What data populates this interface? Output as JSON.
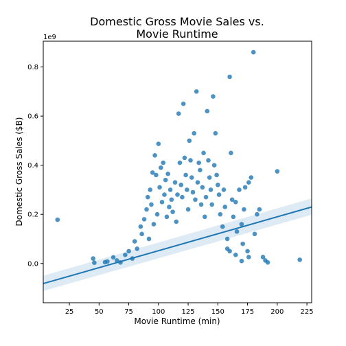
{
  "chart_data": {
    "type": "scatter",
    "title_lines": [
      "Domestic Gross Movie Sales vs.",
      "Movie Runtime"
    ],
    "xlabel": "Movie Runtime (min)",
    "ylabel": "Domestic Gross Sales ($B)",
    "y_offset_label": "1e9",
    "xlim": [
      3,
      229
    ],
    "ylim": [
      -0.16,
      0.905
    ],
    "xticks": [
      25,
      50,
      75,
      100,
      125,
      150,
      175,
      200,
      225
    ],
    "xtick_labels": [
      "25",
      "50",
      "75",
      "100",
      "125",
      "150",
      "175",
      "200",
      "225"
    ],
    "yticks": [
      0.0,
      0.2,
      0.4,
      0.6,
      0.8
    ],
    "ytick_labels": [
      "0.0",
      "0.2",
      "0.4",
      "0.6",
      "0.8"
    ],
    "grid": false,
    "point_color": "#1f77b4",
    "regression": {
      "x": [
        3,
        229
      ],
      "y": [
        -0.082,
        0.23
      ],
      "ci_lower": [
        -0.112,
        0.198
      ],
      "ci_upper": [
        -0.05,
        0.265
      ]
    },
    "points": [
      [
        15,
        0.178
      ],
      [
        45,
        0.02
      ],
      [
        46,
        0.003
      ],
      [
        55,
        0.005
      ],
      [
        57,
        0.008
      ],
      [
        62,
        0.025
      ],
      [
        65,
        0.012
      ],
      [
        68,
        0.004
      ],
      [
        72,
        0.035
      ],
      [
        75,
        0.05
      ],
      [
        78,
        0.02
      ],
      [
        80,
        0.09
      ],
      [
        82,
        0.06
      ],
      [
        85,
        0.15
      ],
      [
        86,
        0.12
      ],
      [
        88,
        0.18
      ],
      [
        90,
        0.22
      ],
      [
        91,
        0.27
      ],
      [
        92,
        0.1
      ],
      [
        93,
        0.3
      ],
      [
        94,
        0.24
      ],
      [
        95,
        0.37
      ],
      [
        96,
        0.16
      ],
      [
        97,
        0.44
      ],
      [
        98,
        0.36
      ],
      [
        99,
        0.2
      ],
      [
        100,
        0.487
      ],
      [
        101,
        0.31
      ],
      [
        102,
        0.39
      ],
      [
        103,
        0.25
      ],
      [
        104,
        0.41
      ],
      [
        105,
        0.28
      ],
      [
        106,
        0.34
      ],
      [
        107,
        0.19
      ],
      [
        108,
        0.365
      ],
      [
        109,
        0.23
      ],
      [
        110,
        0.3
      ],
      [
        111,
        0.26
      ],
      [
        112,
        0.21
      ],
      [
        114,
        0.33
      ],
      [
        115,
        0.17
      ],
      [
        116,
        0.28
      ],
      [
        117,
        0.61
      ],
      [
        118,
        0.41
      ],
      [
        119,
        0.32
      ],
      [
        120,
        0.27
      ],
      [
        121,
        0.65
      ],
      [
        122,
        0.43
      ],
      [
        123,
        0.36
      ],
      [
        124,
        0.3
      ],
      [
        125,
        0.22
      ],
      [
        126,
        0.5
      ],
      [
        127,
        0.42
      ],
      [
        128,
        0.35
      ],
      [
        129,
        0.29
      ],
      [
        130,
        0.53
      ],
      [
        131,
        0.26
      ],
      [
        132,
        0.7
      ],
      [
        133,
        0.33
      ],
      [
        134,
        0.41
      ],
      [
        135,
        0.38
      ],
      [
        136,
        0.24
      ],
      [
        137,
        0.31
      ],
      [
        138,
        0.45
      ],
      [
        139,
        0.19
      ],
      [
        140,
        0.27
      ],
      [
        141,
        0.62
      ],
      [
        142,
        0.42
      ],
      [
        143,
        0.35
      ],
      [
        144,
        0.3
      ],
      [
        145,
        0.24
      ],
      [
        146,
        0.68
      ],
      [
        147,
        0.4
      ],
      [
        148,
        0.53
      ],
      [
        149,
        0.36
      ],
      [
        150,
        0.32
      ],
      [
        151,
        0.28
      ],
      [
        152,
        0.2
      ],
      [
        154,
        0.15
      ],
      [
        155,
        0.3
      ],
      [
        156,
        0.23
      ],
      [
        158,
        0.1
      ],
      [
        160,
        0.76
      ],
      [
        161,
        0.45
      ],
      [
        162,
        0.26
      ],
      [
        163,
        0.19
      ],
      [
        165,
        0.25
      ],
      [
        166,
        0.13
      ],
      [
        168,
        0.3
      ],
      [
        170,
        0.16
      ],
      [
        171,
        0.08
      ],
      [
        172,
        0.22
      ],
      [
        173,
        0.31
      ],
      [
        175,
        0.05
      ],
      [
        176,
        0.33
      ],
      [
        178,
        0.35
      ],
      [
        180,
        0.86
      ],
      [
        181,
        0.12
      ],
      [
        183,
        0.2
      ],
      [
        185,
        0.22
      ],
      [
        188,
        0.026
      ],
      [
        190,
        0.012
      ],
      [
        192,
        0.004
      ],
      [
        200,
        0.375
      ],
      [
        219,
        0.015
      ],
      [
        176,
        0.026
      ],
      [
        170,
        0.01
      ],
      [
        165,
        0.035
      ],
      [
        160,
        0.05
      ],
      [
        158,
        0.06
      ]
    ]
  }
}
